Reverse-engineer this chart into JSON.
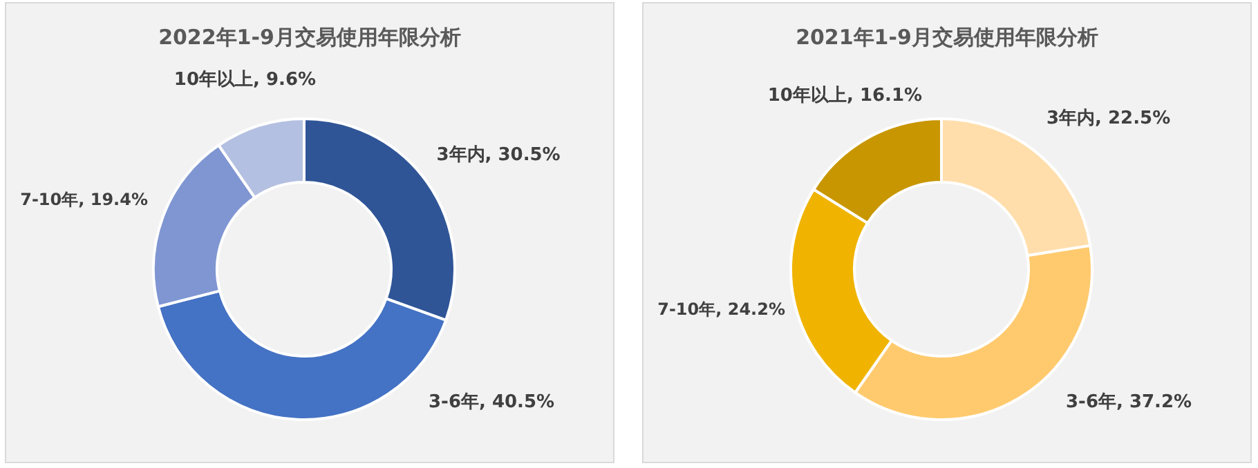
{
  "chart_data": [
    {
      "type": "donut",
      "title": "2022年1-9月交易使用年限分析",
      "categories": [
        "3年内",
        "3-6年",
        "7-10年",
        "10年以上"
      ],
      "values": [
        30.5,
        40.5,
        19.4,
        9.6
      ],
      "value_labels": [
        "30.5%",
        "40.5%",
        "19.4%",
        "9.6%"
      ],
      "colors": [
        "#2f5597",
        "#4472c4",
        "#7f96d2",
        "#b4c0e1"
      ]
    },
    {
      "type": "donut",
      "title": "2021年1-9月交易使用年限分析",
      "categories": [
        "3年内",
        "3-6年",
        "7-10年",
        "10年以上"
      ],
      "values": [
        22.5,
        37.2,
        24.2,
        16.1
      ],
      "value_labels": [
        "22.5%",
        "37.2%",
        "24.2%",
        "16.1%"
      ],
      "colors": [
        "#ffdeab",
        "#ffca6e",
        "#f0b400",
        "#c89600"
      ]
    }
  ]
}
